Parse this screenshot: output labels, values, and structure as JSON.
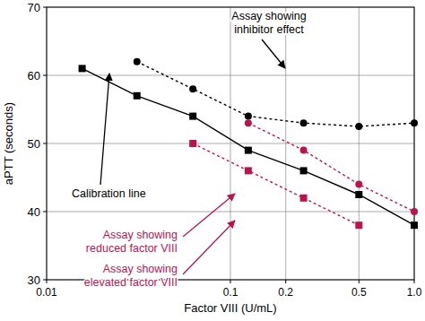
{
  "chart_data": {
    "type": "line",
    "x_label": "Factor VIII (U/mL)",
    "y_label": "aPTT (seconds)",
    "log": "x",
    "grid": true,
    "xlim": [
      0.01,
      1
    ],
    "ylim": [
      30,
      70
    ],
    "xticks": [
      0.01,
      0.1,
      0.2,
      0.5,
      {
        "value": 1,
        "label": "1.0"
      }
    ],
    "yticks": [
      30,
      40,
      50,
      60,
      70
    ],
    "series": [
      {
        "name": "Calibration line",
        "color": "#000000",
        "marker": "square",
        "line_style": "solid",
        "x": [
          0.0156,
          0.031,
          0.0625,
          0.125,
          0.25,
          0.5,
          1.0
        ],
        "values": [
          61,
          57,
          54,
          49,
          46,
          42.5,
          38
        ]
      },
      {
        "name": "Assay showing inhibitor effect",
        "color": "#000000",
        "marker": "circle",
        "line_style": "dashed",
        "x": [
          0.031,
          0.0625,
          0.125,
          0.25,
          0.5,
          1.0
        ],
        "values": [
          62,
          58,
          54,
          53,
          52.5,
          53
        ]
      },
      {
        "name": "Assay showing reduced factor VIII",
        "color": "#b8154f",
        "marker": "circle",
        "line_style": "dashed",
        "x": [
          0.125,
          0.25,
          0.5,
          1.0
        ],
        "values": [
          53,
          49,
          44,
          40
        ]
      },
      {
        "name": "Assay showing elevated factor VIII",
        "color": "#b8154f",
        "marker": "square",
        "line_style": "dashed",
        "x": [
          0.0625,
          0.125,
          0.25,
          0.5
        ],
        "values": [
          50,
          46,
          42,
          38
        ]
      }
    ],
    "annotations": [
      {
        "text": [
          "Assay showing",
          "inhibitor effect"
        ],
        "color": "#000000"
      },
      {
        "text": [
          "Calibration line"
        ],
        "color": "#000000"
      },
      {
        "text": [
          "Assay showing",
          "reduced factor VIII"
        ],
        "color": "#b8154f"
      },
      {
        "text": [
          "Assay showing",
          "elevated factor VIII"
        ],
        "color": "#b8154f"
      }
    ]
  }
}
